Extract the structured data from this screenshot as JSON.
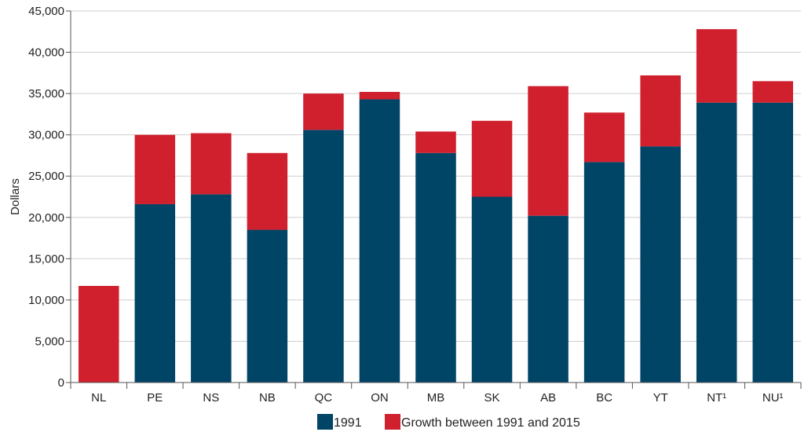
{
  "chart_data": {
    "type": "bar",
    "stacked": true,
    "categories": [
      "NL",
      "PE",
      "NS",
      "NB",
      "QC",
      "ON",
      "MB",
      "SK",
      "AB",
      "BC",
      "YT",
      "NT¹",
      "NU¹"
    ],
    "series": [
      {
        "name": "1991",
        "color": "#004466",
        "values": [
          0,
          21600,
          22800,
          18500,
          30600,
          34300,
          27800,
          22500,
          20200,
          26700,
          28600,
          33900,
          33900
        ]
      },
      {
        "name": "Growth between 1991 and 2015",
        "color": "#d0202e",
        "values": [
          11700,
          8400,
          7400,
          9300,
          4400,
          900,
          2600,
          9200,
          15700,
          6000,
          8600,
          8900,
          2600
        ]
      }
    ],
    "ylabel": "Dollars",
    "xlabel": "",
    "ylim": [
      0,
      45000
    ],
    "yticks": [
      0,
      5000,
      10000,
      15000,
      20000,
      25000,
      30000,
      35000,
      40000,
      45000
    ],
    "ytick_labels": [
      "0",
      "5,000",
      "10,000",
      "15,000",
      "20,000",
      "25,000",
      "30,000",
      "35,000",
      "40,000",
      "45,000"
    ],
    "grid": true,
    "legend_position": "bottom-center"
  }
}
